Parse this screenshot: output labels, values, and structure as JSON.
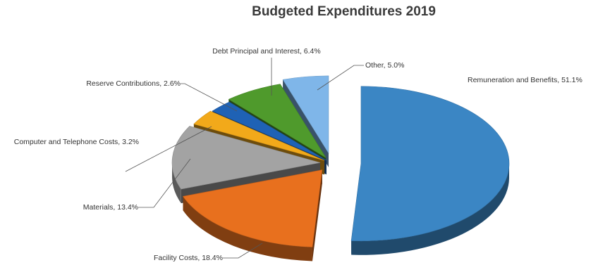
{
  "chart_data": {
    "type": "pie",
    "title": "Budgeted Expenditures 2019",
    "slices": [
      {
        "name": "Remuneration and Benefits",
        "value": 51.1,
        "label": "Remuneration and Benefits, 51.1%",
        "color": "#3b86c4"
      },
      {
        "name": "Facility Costs",
        "value": 18.4,
        "label": "Facility Costs, 18.4%",
        "color": "#e8701e"
      },
      {
        "name": "Materials",
        "value": 13.4,
        "label": "Materials, 13.4%",
        "color": "#a3a3a3"
      },
      {
        "name": "Computer and Telephone Costs",
        "value": 3.2,
        "label": "Computer and Telephone Costs, 3.2%",
        "color": "#f2a91a"
      },
      {
        "name": "Reserve Contributions",
        "value": 2.6,
        "label": "Reserve Contributions, 2.6%",
        "color": "#1f62b5"
      },
      {
        "name": "Debt Principal and Interest",
        "value": 6.4,
        "label": "Debt Principal and Interest, 6.4%",
        "color": "#4f9a2c"
      },
      {
        "name": "Other",
        "value": 5.0,
        "label": "Other, 5.0%",
        "color": "#7fb6e9"
      }
    ],
    "legend": "none",
    "style": "3d-exploded"
  }
}
